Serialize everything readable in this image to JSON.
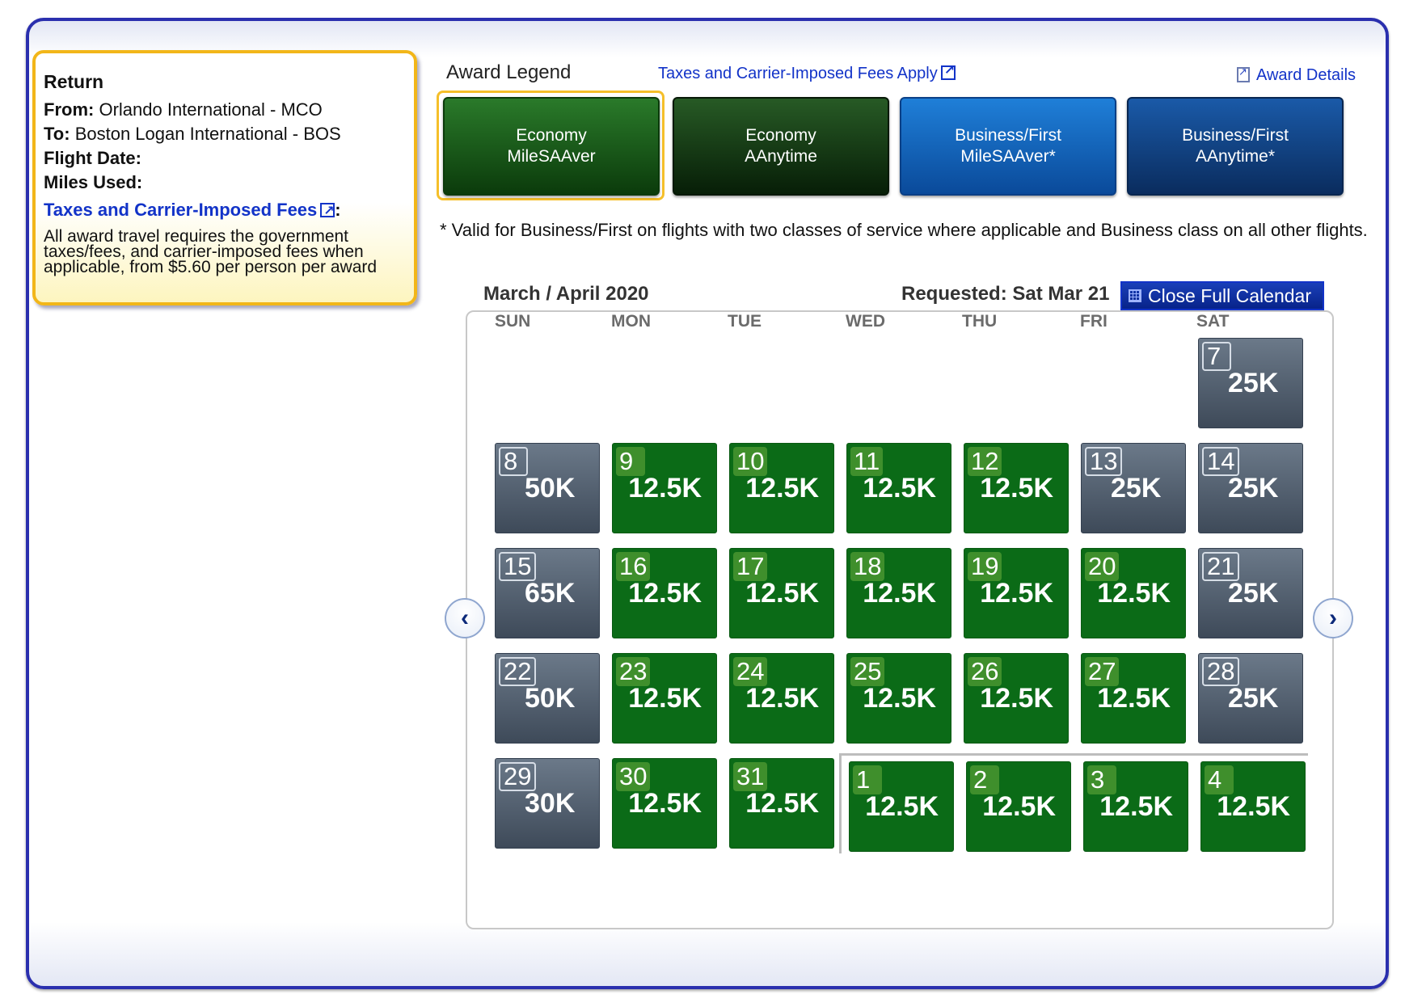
{
  "info": {
    "heading": "Return",
    "from_label": "From:",
    "from_value": "Orlando International - MCO",
    "to_label": "To:",
    "to_value": "Boston Logan International - BOS",
    "date_label": "Flight Date:",
    "miles_label": "Miles Used:",
    "taxes_link": "Taxes and Carrier-Imposed Fees",
    "taxes_colon": ":",
    "note": "All award travel requires the government taxes/fees, and carrier-imposed fees when applicable, from $5.60 per person per award"
  },
  "legend": {
    "title": "Award Legend",
    "taxes_link": "Taxes and Carrier-Imposed Fees Apply",
    "award_details": "Award Details",
    "items": [
      {
        "line1": "Economy",
        "line2": "MileSAAver"
      },
      {
        "line1": "Economy",
        "line2": "AAnytime"
      },
      {
        "line1": "Business/First",
        "line2": "MileSAAver*"
      },
      {
        "line1": "Business/First",
        "line2": "AAnytime*"
      }
    ],
    "footnote": "* Valid for Business/First on flights with two classes of service where applicable and Business class on all other flights."
  },
  "calendar": {
    "month_label": "March / April 2020",
    "requested": "Requested: Sat Mar 21",
    "close_button": "Close Full Calendar",
    "weekdays": [
      "SUN",
      "MON",
      "TUE",
      "WED",
      "THU",
      "FRI",
      "SAT"
    ],
    "prev_glyph": "‹",
    "next_glyph": "›",
    "days": [
      {
        "d": "7",
        "miles": "25K",
        "type": "gray"
      },
      {
        "d": "8",
        "miles": "50K",
        "type": "gray"
      },
      {
        "d": "9",
        "miles": "12.5K",
        "type": "green"
      },
      {
        "d": "10",
        "miles": "12.5K",
        "type": "green"
      },
      {
        "d": "11",
        "miles": "12.5K",
        "type": "green"
      },
      {
        "d": "12",
        "miles": "12.5K",
        "type": "green"
      },
      {
        "d": "13",
        "miles": "25K",
        "type": "gray"
      },
      {
        "d": "14",
        "miles": "25K",
        "type": "gray"
      },
      {
        "d": "15",
        "miles": "65K",
        "type": "gray"
      },
      {
        "d": "16",
        "miles": "12.5K",
        "type": "green"
      },
      {
        "d": "17",
        "miles": "12.5K",
        "type": "green"
      },
      {
        "d": "18",
        "miles": "12.5K",
        "type": "green"
      },
      {
        "d": "19",
        "miles": "12.5K",
        "type": "green"
      },
      {
        "d": "20",
        "miles": "12.5K",
        "type": "green"
      },
      {
        "d": "21",
        "miles": "25K",
        "type": "gray"
      },
      {
        "d": "22",
        "miles": "50K",
        "type": "gray"
      },
      {
        "d": "23",
        "miles": "12.5K",
        "type": "green"
      },
      {
        "d": "24",
        "miles": "12.5K",
        "type": "green"
      },
      {
        "d": "25",
        "miles": "12.5K",
        "type": "green"
      },
      {
        "d": "26",
        "miles": "12.5K",
        "type": "green"
      },
      {
        "d": "27",
        "miles": "12.5K",
        "type": "green"
      },
      {
        "d": "28",
        "miles": "25K",
        "type": "gray"
      },
      {
        "d": "29",
        "miles": "30K",
        "type": "gray"
      },
      {
        "d": "30",
        "miles": "12.5K",
        "type": "green"
      },
      {
        "d": "31",
        "miles": "12.5K",
        "type": "green"
      },
      {
        "d": "1",
        "miles": "12.5K",
        "type": "green"
      },
      {
        "d": "2",
        "miles": "12.5K",
        "type": "green"
      },
      {
        "d": "3",
        "miles": "12.5K",
        "type": "green"
      },
      {
        "d": "4",
        "miles": "12.5K",
        "type": "green"
      }
    ]
  }
}
